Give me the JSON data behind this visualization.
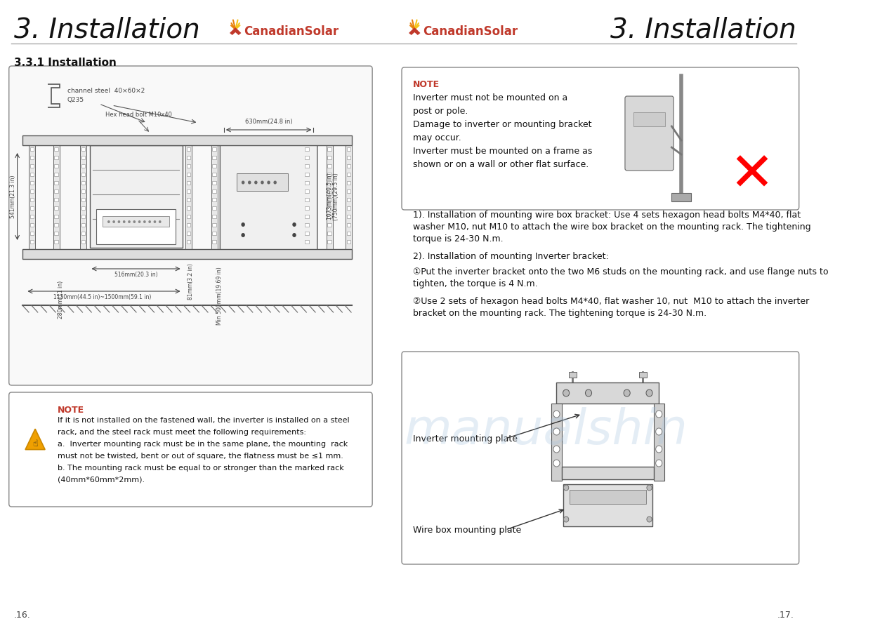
{
  "title_left": "3. Installation",
  "title_right": "3. Installation",
  "page_left": ".16.",
  "page_right": ".17.",
  "section_title": "3.3.1 Installation",
  "bg_color": "#ffffff",
  "header_line_color": "#aaaaaa",
  "note_left_title": "NOTE",
  "note_left_text_line1": "If it is not installed on the fastened wall, the inverter is installed on a steel",
  "note_left_text_line2": "rack, and the steel rack must meet the following requirements:",
  "note_left_text_line3": "a.  Inverter mounting rack must be in the same plane, the mounting  rack",
  "note_left_text_line4": "must not be twisted, bent or out of square, the flatness must be ≤1 mm.",
  "note_left_text_line5": "b. The mounting rack must be equal to or stronger than the marked rack",
  "note_left_text_line6": "(40mm*60mm*2mm).",
  "note_right_title": "NOTE",
  "note_right_lines": [
    "Inverter must not be mounted on a",
    "post or pole.",
    "Damage to inverter or mounting bracket",
    "may occur.",
    "Inverter must be mounted on a frame as",
    "shown or on a wall or other flat surface."
  ],
  "text_block1_lines": [
    "1). Installation of mounting wire box bracket: Use 4 sets hexagon head bolts M4*40, flat",
    "washer M10, nut M10 to attach the wire box bracket on the mounting rack. The tightening",
    "torque is 24-30 N.m."
  ],
  "text_block2": "2). Installation of mounting Inverter bracket:",
  "text_block3_lines": [
    "①Put the inverter bracket onto the two M6 studs on the mounting rack, and use flange nuts to",
    "tighten, the torque is 4 N.m."
  ],
  "text_block4_lines": [
    "②Use 2 sets of hexagon head bolts M4*40, flat washer 10, nut  M10 to attach the inverter",
    "bracket on the mounting rack. The tightening torque is 24-30 N.m."
  ],
  "label_inverter_mounting": "Inverter mounting plate",
  "label_wire_box": "Wire box mounting plate",
  "cs_logo_color_orange": "#e8820a",
  "cs_logo_color_red": "#c0392b",
  "watermark_color": "#a8c4e0",
  "title_fontsize": 28,
  "body_fontsize": 9,
  "note_fontsize": 8.5,
  "small_fontsize": 7
}
